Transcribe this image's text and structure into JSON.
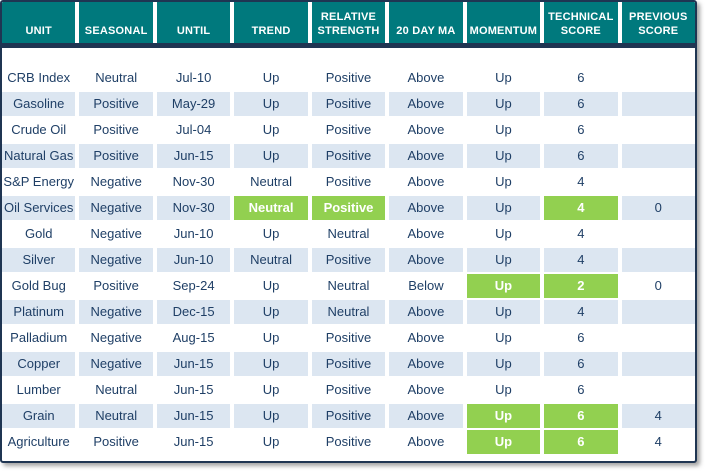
{
  "chart_data": {
    "type": "table",
    "columns": [
      "UNIT",
      "SEASONAL",
      "UNTIL",
      "TREND",
      "RELATIVE STRENGTH",
      "20 DAY MA",
      "MOMENTUM",
      "TECHNICAL SCORE",
      "PREVIOUS SCORE"
    ],
    "rows": [
      {
        "cells": [
          "CRB Index",
          "Neutral",
          "Jul-10",
          "Up",
          "Positive",
          "Above",
          "Up",
          "6",
          ""
        ],
        "highlight_cols": []
      },
      {
        "cells": [
          "Gasoline",
          "Positive",
          "May-29",
          "Up",
          "Positive",
          "Above",
          "Up",
          "6",
          ""
        ],
        "highlight_cols": []
      },
      {
        "cells": [
          "Crude Oil",
          "Positive",
          "Jul-04",
          "Up",
          "Positive",
          "Above",
          "Up",
          "6",
          ""
        ],
        "highlight_cols": []
      },
      {
        "cells": [
          "Natural Gas",
          "Positive",
          "Jun-15",
          "Up",
          "Positive",
          "Above",
          "Up",
          "6",
          ""
        ],
        "highlight_cols": []
      },
      {
        "cells": [
          "S&P Energy",
          "Negative",
          "Nov-30",
          "Neutral",
          "Positive",
          "Above",
          "Up",
          "4",
          ""
        ],
        "highlight_cols": []
      },
      {
        "cells": [
          "Oil Services",
          "Negative",
          "Nov-30",
          "Neutral",
          "Positive",
          "Above",
          "Up",
          "4",
          "0"
        ],
        "highlight_cols": [
          3,
          4,
          7
        ]
      },
      {
        "cells": [
          "Gold",
          "Negative",
          "Jun-10",
          "Up",
          "Neutral",
          "Above",
          "Up",
          "4",
          ""
        ],
        "highlight_cols": []
      },
      {
        "cells": [
          "Silver",
          "Negative",
          "Jun-10",
          "Neutral",
          "Positive",
          "Above",
          "Up",
          "4",
          ""
        ],
        "highlight_cols": []
      },
      {
        "cells": [
          "Gold Bug",
          "Positive",
          "Sep-24",
          "Up",
          "Neutral",
          "Below",
          "Up",
          "2",
          "0"
        ],
        "highlight_cols": [
          6,
          7
        ]
      },
      {
        "cells": [
          "Platinum",
          "Negative",
          "Dec-15",
          "Up",
          "Neutral",
          "Above",
          "Up",
          "4",
          ""
        ],
        "highlight_cols": []
      },
      {
        "cells": [
          "Palladium",
          "Negative",
          "Aug-15",
          "Up",
          "Positive",
          "Above",
          "Up",
          "6",
          ""
        ],
        "highlight_cols": []
      },
      {
        "cells": [
          "Copper",
          "Negative",
          "Jun-15",
          "Up",
          "Positive",
          "Above",
          "Up",
          "6",
          ""
        ],
        "highlight_cols": []
      },
      {
        "cells": [
          "Lumber",
          "Neutral",
          "Jun-15",
          "Up",
          "Positive",
          "Above",
          "Up",
          "6",
          ""
        ],
        "highlight_cols": []
      },
      {
        "cells": [
          "Grain",
          "Neutral",
          "Jun-15",
          "Up",
          "Positive",
          "Above",
          "Up",
          "6",
          "4"
        ],
        "highlight_cols": [
          6,
          7
        ]
      },
      {
        "cells": [
          "Agriculture",
          "Positive",
          "Jun-15",
          "Up",
          "Positive",
          "Above",
          "Up",
          "6",
          "4"
        ],
        "highlight_cols": [
          6,
          7
        ]
      }
    ],
    "legend_position": "none",
    "grid": "white gridlines between cells"
  },
  "colors": {
    "header_bg": "#00797d",
    "header_text": "#ffffff",
    "highlight_green": "#92d050",
    "highlight_text": "#ffffff",
    "alt_row_blue": "#dce6f1",
    "row_white": "#ffffff",
    "body_text": "#1f3f66",
    "border_navy": "#1f3552"
  }
}
